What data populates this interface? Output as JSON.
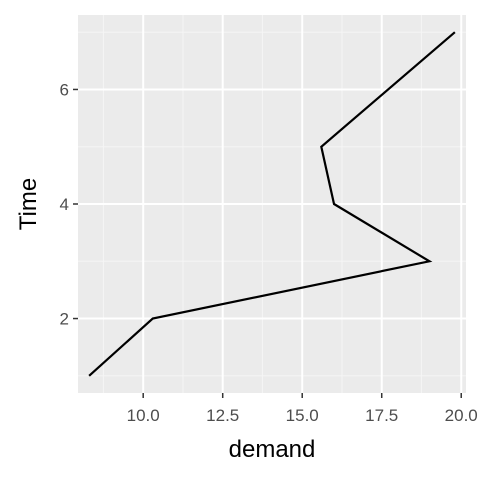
{
  "chart_data": {
    "type": "line",
    "xlabel": "demand",
    "ylabel": "Time",
    "xlim": [
      7.95,
      20.15
    ],
    "ylim": [
      0.7,
      7.3
    ],
    "x_ticks": [
      10.0,
      12.5,
      15.0,
      17.5,
      20.0
    ],
    "x_tick_labels": [
      "10.0",
      "12.5",
      "15.0",
      "17.5",
      "20.0"
    ],
    "y_ticks": [
      2,
      4,
      6
    ],
    "y_tick_labels": [
      "2",
      "4",
      "6"
    ],
    "grid": true,
    "legend": "none",
    "series": [
      {
        "x": [
          8.3,
          10.3,
          19.0,
          16.0,
          15.6,
          19.8
        ],
        "y": [
          1,
          2,
          3,
          4,
          5,
          7
        ],
        "color": "#000000"
      }
    ],
    "colors": {
      "panel_background": "#ebebeb",
      "grid_major": "#ffffff",
      "grid_minor": "#f5f5f5",
      "line": "#000000",
      "tick_text": "#4d4d4d",
      "axis_title_text": "#000000"
    }
  }
}
